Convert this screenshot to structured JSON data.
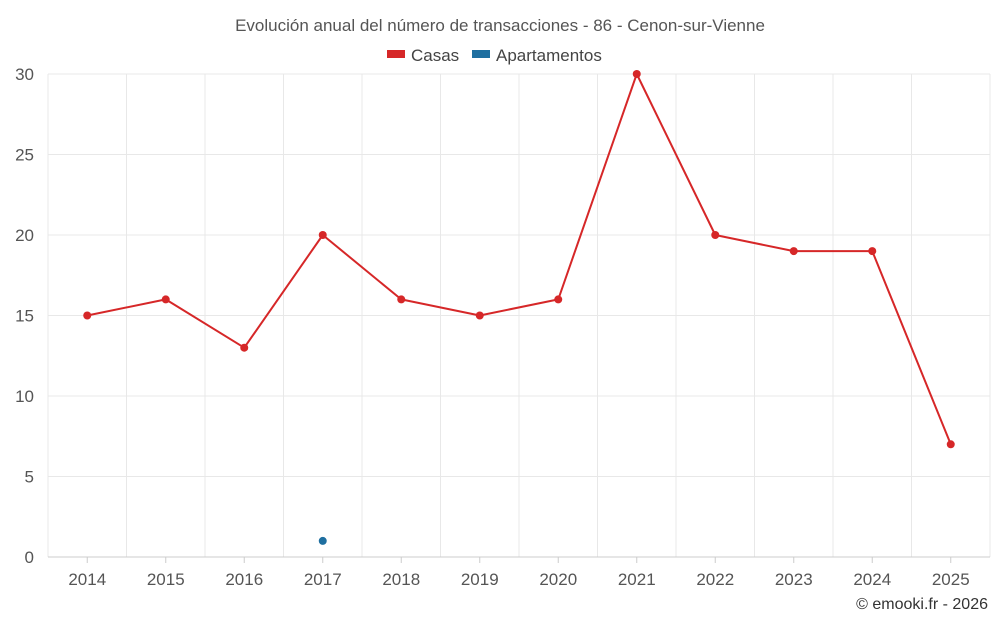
{
  "chart_data": {
    "type": "line",
    "title": "Evolución anual del número de transacciones - 86 - Cenon-sur-Vienne",
    "categories": [
      "2014",
      "2015",
      "2016",
      "2017",
      "2018",
      "2019",
      "2020",
      "2021",
      "2022",
      "2023",
      "2024",
      "2025"
    ],
    "series": [
      {
        "name": "Casas",
        "color": "#d62728",
        "values": [
          15,
          16,
          13,
          20,
          16,
          15,
          16,
          30,
          20,
          19,
          19,
          7
        ]
      },
      {
        "name": "Apartamentos",
        "color": "#1f6fa0",
        "values": [
          null,
          null,
          null,
          1,
          null,
          null,
          null,
          null,
          null,
          null,
          null,
          null
        ]
      }
    ],
    "ylim": [
      0,
      30
    ],
    "yticks": [
      "0",
      "5",
      "10",
      "15",
      "20",
      "25",
      "30"
    ],
    "grid": true,
    "legend": "top-center"
  },
  "credit": "© emooki.fr - 2026"
}
